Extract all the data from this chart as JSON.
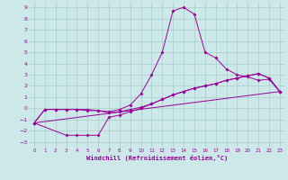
{
  "xlabel": "Windchill (Refroidissement éolien,°C)",
  "bg_color": "#cce8e8",
  "grid_color": "#aacccc",
  "line_color": "#990099",
  "xlim": [
    -0.5,
    23.5
  ],
  "ylim": [
    -3.5,
    9.5
  ],
  "xticks": [
    0,
    1,
    2,
    3,
    4,
    5,
    6,
    7,
    8,
    9,
    10,
    11,
    12,
    13,
    14,
    15,
    16,
    17,
    18,
    19,
    20,
    21,
    22,
    23
  ],
  "yticks": [
    -3,
    -2,
    -1,
    0,
    1,
    2,
    3,
    4,
    5,
    6,
    7,
    8,
    9
  ],
  "line1_x": [
    0,
    1,
    2,
    3,
    4,
    5,
    6,
    7,
    8,
    9,
    10,
    11,
    12,
    13,
    14,
    15,
    16,
    17,
    18,
    19,
    20,
    21,
    22,
    23
  ],
  "line1_y": [
    -1.3,
    -0.1,
    -0.1,
    -0.1,
    -0.1,
    -0.1,
    -0.2,
    -0.3,
    -0.1,
    0.3,
    1.3,
    3.0,
    5.0,
    8.7,
    9.0,
    8.4,
    5.0,
    4.5,
    3.5,
    3.0,
    2.8,
    2.5,
    2.6,
    1.5
  ],
  "line2_x": [
    0,
    3,
    4,
    5,
    6,
    7,
    8,
    9,
    10,
    11,
    12,
    13,
    14,
    15,
    16,
    17,
    18,
    19,
    20,
    21,
    22,
    23
  ],
  "line2_y": [
    -1.3,
    -2.4,
    -2.4,
    -2.4,
    -2.4,
    -0.8,
    -0.6,
    -0.3,
    0.0,
    0.4,
    0.8,
    1.2,
    1.5,
    1.8,
    2.0,
    2.2,
    2.5,
    2.7,
    2.9,
    3.1,
    2.7,
    1.5
  ],
  "line3_x": [
    0,
    1,
    2,
    3,
    4,
    5,
    6,
    7,
    8,
    9,
    10,
    11,
    12,
    13,
    14,
    15,
    16,
    17,
    18,
    19,
    20,
    21,
    22,
    23
  ],
  "line3_y": [
    -1.3,
    -0.1,
    -0.1,
    -0.1,
    -0.1,
    -0.2,
    -0.2,
    -0.4,
    -0.3,
    -0.1,
    0.1,
    0.4,
    0.8,
    1.2,
    1.5,
    1.8,
    2.0,
    2.2,
    2.5,
    2.7,
    2.9,
    3.1,
    2.7,
    1.5
  ],
  "line4_x": [
    0,
    23
  ],
  "line4_y": [
    -1.3,
    1.5
  ]
}
